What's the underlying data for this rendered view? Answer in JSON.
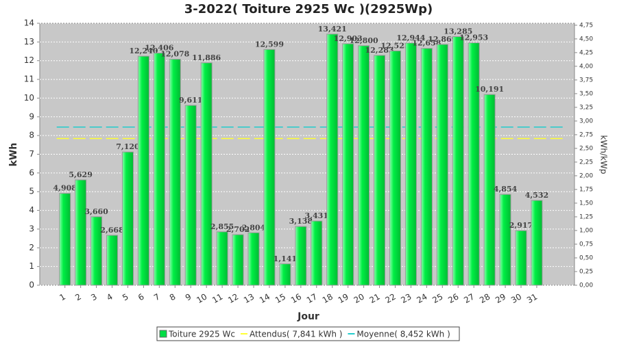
{
  "chart_data": {
    "type": "bar",
    "title": "3-2022( Toiture 2925 Wc )(2925Wp)",
    "x_label": "Jour",
    "y_label": "kWh",
    "y2_label": "kWh/kWp",
    "categories": [
      "1",
      "2",
      "3",
      "4",
      "5",
      "6",
      "7",
      "8",
      "9",
      "10",
      "11",
      "12",
      "13",
      "14",
      "15",
      "16",
      "17",
      "18",
      "19",
      "20",
      "21",
      "22",
      "23",
      "24",
      "25",
      "26",
      "27",
      "28",
      "29",
      "30",
      "31"
    ],
    "series": [
      {
        "name": "Toiture 2925 Wc",
        "color": "#00dd44",
        "values": [
          4.908,
          5.629,
          3.66,
          2.668,
          7.12,
          12.24,
          12.406,
          12.078,
          9.611,
          11.886,
          2.855,
          2.702,
          2.804,
          12.599,
          1.141,
          3.138,
          3.431,
          13.421,
          12.903,
          12.8,
          12.283,
          12.523,
          12.944,
          12.658,
          12.869,
          13.285,
          12.953,
          10.191,
          4.854,
          2.917,
          4.532
        ],
        "value_labels": [
          "4,908",
          "5,629",
          "3,660",
          "2,668",
          "7,120",
          "12,240",
          "12,406",
          "12,078",
          "9,611",
          "11,886",
          "2,855",
          "2,702",
          "2,804",
          "12,599",
          "1,141",
          "3,138",
          "3,431",
          "13,421",
          "12,903",
          "12,800",
          "12,283",
          "12,523",
          "12,944",
          "12,658",
          "12,869",
          "13,285",
          "12,953",
          "10,191",
          "4,854",
          "2,917",
          "4,532"
        ]
      }
    ],
    "reference_lines": [
      {
        "name": "Attendus( 7,841 kWh )",
        "value": 7.841,
        "color": "#ffff33"
      },
      {
        "name": "Moyenne( 8,452 kWh )",
        "value": 8.452,
        "color": "#22cccc"
      }
    ],
    "ylim": [
      0,
      14
    ],
    "yticks": [
      0,
      1,
      2,
      3,
      4,
      5,
      6,
      7,
      8,
      9,
      10,
      11,
      12,
      13,
      14
    ],
    "y2lim": [
      0,
      4.786
    ],
    "y2ticks": [
      {
        "value": 0,
        "label": "0,00"
      },
      {
        "value": 0.25,
        "label": "0,25"
      },
      {
        "value": 0.5,
        "label": "0,50"
      },
      {
        "value": 0.75,
        "label": "0,75"
      },
      {
        "value": 1,
        "label": "1,00"
      },
      {
        "value": 1.25,
        "label": "1,25"
      },
      {
        "value": 1.5,
        "label": "1,50"
      },
      {
        "value": 1.75,
        "label": "1,75"
      },
      {
        "value": 2,
        "label": "2,00"
      },
      {
        "value": 2.25,
        "label": "2,25"
      },
      {
        "value": 2.5,
        "label": "2,50"
      },
      {
        "value": 2.75,
        "label": "2,75"
      },
      {
        "value": 3,
        "label": "3,00"
      },
      {
        "value": 3.25,
        "label": "3,25"
      },
      {
        "value": 3.5,
        "label": "3,50"
      },
      {
        "value": 3.75,
        "label": "3,75"
      },
      {
        "value": 4,
        "label": "4,00"
      },
      {
        "value": 4.25,
        "label": "4,25"
      },
      {
        "value": 4.5,
        "label": "4,50"
      },
      {
        "value": 4.75,
        "label": "4,75"
      }
    ],
    "grid": true
  }
}
